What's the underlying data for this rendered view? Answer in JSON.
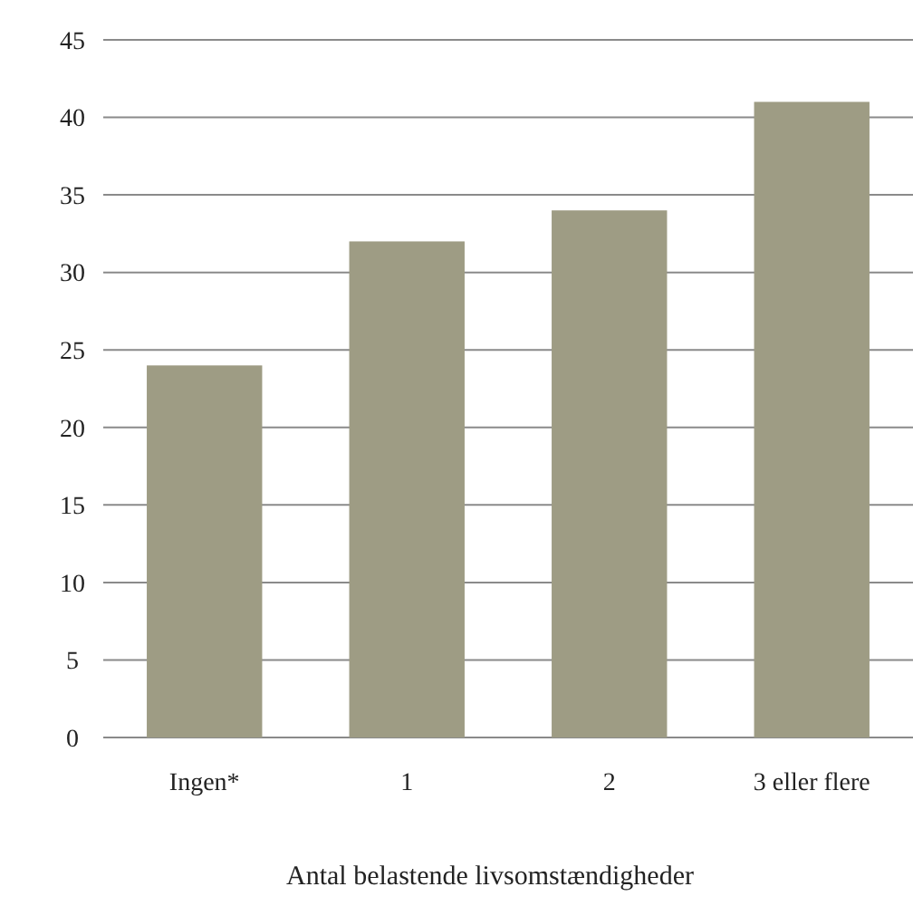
{
  "chart_data": {
    "type": "bar",
    "xlabel": "Antal belastende livsomstændigheder",
    "categories": [
      "Ingen*",
      "1",
      "2",
      "3 eller flere"
    ],
    "values": [
      24,
      32,
      34,
      41
    ],
    "color": "#9e9c84",
    "ylim": [
      0,
      45
    ],
    "yticks": [
      0,
      5,
      10,
      15,
      20,
      25,
      30,
      35,
      40,
      45
    ],
    "grid": "y"
  }
}
